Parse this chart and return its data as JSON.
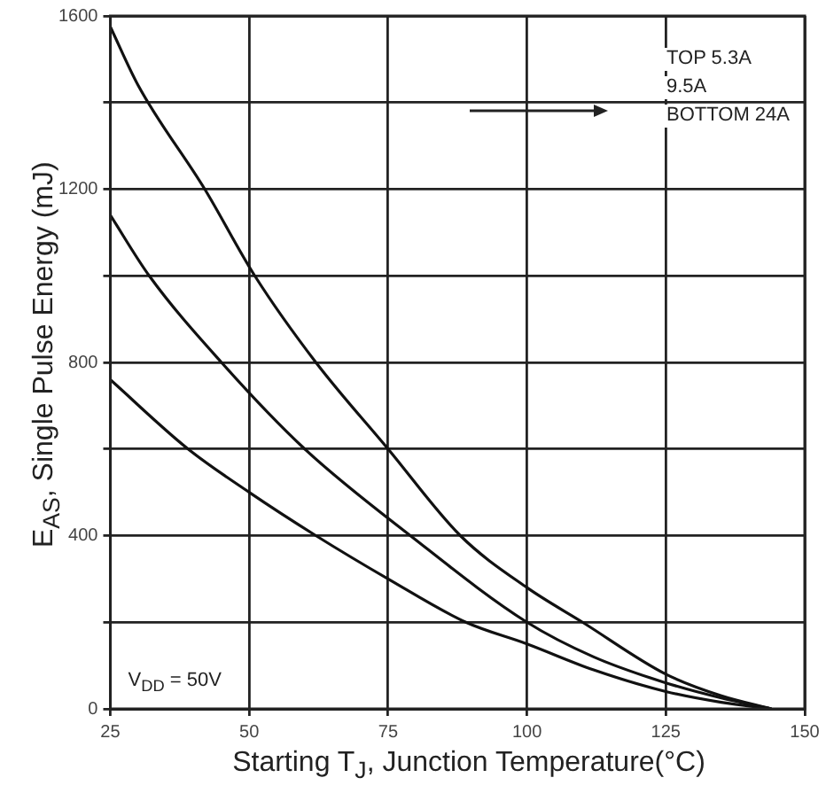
{
  "chart_data": {
    "type": "line",
    "xlabel": "Starting T$_{J}$, Junction Temperature(°C)",
    "ylabel": "E$_{AS}$, Single Pulse Energy (mJ)",
    "xlim": [
      25,
      150
    ],
    "xticks": [
      25,
      50,
      75,
      100,
      125,
      150
    ],
    "ylim": [
      0,
      1600
    ],
    "yticks": [
      0,
      {
        "value": 200,
        "label": null
      },
      400,
      {
        "value": 600,
        "label": null
      },
      800,
      {
        "value": 1000,
        "label": null
      },
      1200,
      {
        "value": 1400,
        "label": null
      },
      1600
    ],
    "grid": true,
    "marker": "none",
    "line_style": "solid",
    "legend": false,
    "annotations": [
      "TOP 5.3A",
      "9.5A",
      "BOTTOM 24A",
      "V$_{DD}$ = 50V"
    ],
    "series": [
      {
        "color": "#111111",
        "x": [
          25,
          30,
          42,
          51,
          62,
          75,
          88,
          100,
          110,
          125,
          135,
          144
        ],
        "values": [
          1575,
          1440,
          1200,
          1000,
          800,
          600,
          400,
          280,
          200,
          80,
          30,
          0
        ]
      },
      {
        "color": "#111111",
        "x": [
          25,
          32,
          45,
          60,
          79,
          100,
          112,
          125,
          135,
          144
        ],
        "values": [
          1140,
          1000,
          800,
          600,
          400,
          200,
          120,
          60,
          25,
          0
        ]
      },
      {
        "color": "#111111",
        "x": [
          25,
          39,
          50,
          62,
          75,
          89,
          100,
          112,
          125,
          135,
          144
        ],
        "values": [
          760,
          600,
          500,
          400,
          300,
          200,
          150,
          90,
          40,
          15,
          0
        ]
      }
    ]
  }
}
